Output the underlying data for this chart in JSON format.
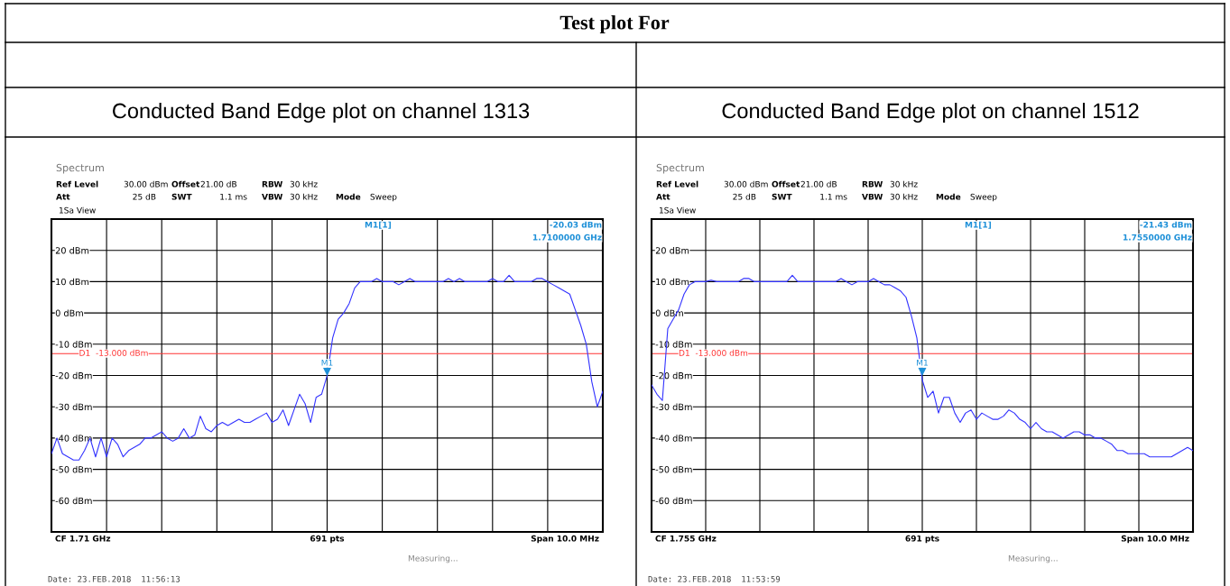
{
  "chart_data": [
    {
      "type": "line",
      "title": "Conducted Band Edge plot on channel 1313",
      "categories": [
        null,
        null,
        null,
        null,
        null,
        null,
        null,
        null,
        null,
        null,
        null,
        null,
        null,
        null,
        null,
        null,
        null,
        null,
        null,
        null,
        null,
        null,
        null,
        null,
        null,
        null,
        null,
        null,
        null,
        null,
        null,
        null,
        null,
        null,
        null,
        null,
        null,
        null,
        null,
        null,
        null,
        null,
        null,
        null,
        null,
        null,
        null,
        null,
        null,
        null,
        null,
        null,
        null,
        null,
        null,
        null,
        null,
        null,
        null,
        null,
        null,
        null,
        null,
        null,
        null,
        null,
        null,
        null,
        null,
        null,
        null,
        null,
        null,
        null,
        null,
        null,
        null,
        null,
        null,
        null,
        null,
        null,
        null,
        null,
        null,
        null,
        null,
        null,
        null,
        null,
        null,
        null,
        null,
        null,
        null,
        null,
        null,
        null,
        null,
        null,
        null
      ],
      "series": [
        {
          "color": "#3333ff",
          "values": [
            -45,
            -40,
            -45,
            -46,
            -47,
            -47,
            -44,
            -40,
            -46,
            -40,
            -46,
            -40,
            -42,
            -46,
            -44,
            -43,
            -42,
            -40,
            -40,
            -39,
            -38,
            -40,
            -41,
            -40,
            -37,
            -40,
            -39,
            -33,
            -37,
            -38,
            -36,
            -35,
            -36,
            -35,
            -34,
            -35,
            -35,
            -34,
            -33,
            -32,
            -35,
            -34,
            -31,
            -36,
            -31,
            -26,
            -29,
            -35,
            -27,
            -26,
            -20.03,
            -8,
            -2,
            0,
            3,
            8,
            10,
            10,
            10,
            11,
            10,
            10,
            10,
            9,
            10,
            11,
            10,
            10,
            10,
            10,
            10,
            10,
            11,
            10,
            11,
            10,
            10,
            10,
            10,
            10,
            11,
            10,
            10,
            12,
            10,
            10,
            10,
            10,
            11,
            11,
            10,
            9,
            8,
            7,
            6,
            1,
            -4,
            -10,
            -22,
            -30,
            -25
          ]
        }
      ],
      "ylim": [
        -70,
        30
      ],
      "yticks": [
        {
          "value": 20,
          "label": "20 dBm"
        },
        {
          "value": 10,
          "label": "10 dBm"
        },
        {
          "value": 0,
          "label": "0 dBm"
        },
        {
          "value": -10,
          "label": "-10 dBm"
        },
        {
          "value": -20,
          "label": "-20 dBm"
        },
        {
          "value": -30,
          "label": "-30 dBm"
        },
        {
          "value": -40,
          "label": "-40 dBm"
        },
        {
          "value": -50,
          "label": "-50 dBm"
        },
        {
          "value": -60,
          "label": "-60 dBm"
        }
      ],
      "tick_labels": "y",
      "grid": true,
      "line_style": "solid",
      "marker": "none",
      "ref_lines": [
        {
          "axis": "y",
          "value": -13,
          "label": "D1  -13.000 dBm",
          "color": "#ff3333"
        }
      ],
      "annotations": [
        "Spectrum",
        "Ref Level",
        "30.00 dBm",
        "Offset",
        "21.00 dB",
        "RBW",
        "30 kHz",
        "Att",
        "25 dB",
        "SWT",
        "1.1 ms",
        "VBW",
        "30 kHz",
        "Mode",
        "Sweep",
        "1Sa View",
        "M1[1]",
        "-20.03 dBm",
        "1.7100000 GHz",
        "CF 1.71 GHz",
        "691 pts",
        "Span 10.0 MHz",
        "Measuring...",
        "Date: 23.FEB.2018  11:56:13",
        "M1",
        "Test plot For"
      ]
    },
    {
      "type": "line",
      "title": "Conducted Band Edge plot on channel 1512",
      "categories": [
        null,
        null,
        null,
        null,
        null,
        null,
        null,
        null,
        null,
        null,
        null,
        null,
        null,
        null,
        null,
        null,
        null,
        null,
        null,
        null,
        null,
        null,
        null,
        null,
        null,
        null,
        null,
        null,
        null,
        null,
        null,
        null,
        null,
        null,
        null,
        null,
        null,
        null,
        null,
        null,
        null,
        null,
        null,
        null,
        null,
        null,
        null,
        null,
        null,
        null,
        null,
        null,
        null,
        null,
        null,
        null,
        null,
        null,
        null,
        null,
        null,
        null,
        null,
        null,
        null,
        null,
        null,
        null,
        null,
        null,
        null,
        null,
        null,
        null,
        null,
        null,
        null,
        null,
        null,
        null,
        null,
        null,
        null,
        null,
        null,
        null,
        null,
        null,
        null,
        null,
        null,
        null,
        null,
        null,
        null,
        null,
        null,
        null,
        null,
        null,
        null
      ],
      "series": [
        {
          "color": "#3333ff",
          "values": [
            -23,
            -26,
            -28,
            -5,
            -2,
            1,
            6,
            9,
            10,
            10,
            10,
            10.5,
            10,
            10,
            10,
            10,
            10,
            11,
            11,
            10,
            10,
            10,
            10,
            10,
            10,
            10,
            12,
            10,
            10,
            10,
            10,
            10,
            10,
            10,
            10,
            11,
            10,
            9,
            10,
            10,
            10,
            11,
            10,
            9,
            9,
            8,
            7,
            5,
            -1,
            -8,
            -21.43,
            -27,
            -25,
            -32,
            -27,
            -27,
            -32,
            -35,
            -32,
            -31,
            -34,
            -32,
            -33,
            -34,
            -34,
            -33,
            -31,
            -32,
            -34,
            -35,
            -37,
            -35,
            -37,
            -38,
            -38,
            -39,
            -40,
            -39,
            -38,
            -38,
            -39,
            -39,
            -40,
            -40,
            -41,
            -42,
            -44,
            -44,
            -45,
            -45,
            -45,
            -45,
            -46,
            -46,
            -46,
            -46,
            -46,
            -45,
            -44,
            -43,
            -44
          ]
        }
      ],
      "ylim": [
        -70,
        30
      ],
      "yticks": [
        {
          "value": 20,
          "label": "20 dBm"
        },
        {
          "value": 10,
          "label": "10 dBm"
        },
        {
          "value": 0,
          "label": "0 dBm"
        },
        {
          "value": -10,
          "label": "-10 dBm"
        },
        {
          "value": -20,
          "label": "-20 dBm"
        },
        {
          "value": -30,
          "label": "-30 dBm"
        },
        {
          "value": -40,
          "label": "-40 dBm"
        },
        {
          "value": -50,
          "label": "-50 dBm"
        },
        {
          "value": -60,
          "label": "-60 dBm"
        }
      ],
      "tick_labels": "y",
      "grid": true,
      "line_style": "solid",
      "marker": "none",
      "ref_lines": [
        {
          "axis": "y",
          "value": -13,
          "label": "D1  -13.000 dBm",
          "color": "#ff3333"
        }
      ],
      "annotations": [
        "Spectrum",
        "Ref Level",
        "30.00 dBm",
        "Offset",
        "21.00 dB",
        "RBW",
        "30 kHz",
        "Att",
        "25 dB",
        "SWT",
        "1.1 ms",
        "VBW",
        "30 kHz",
        "Mode",
        "Sweep",
        "1Sa View",
        "M1[1]",
        "-21.43 dBm",
        "1.7550000 GHz",
        "CF 1.755 GHz",
        "691 pts",
        "Span 10.0 MHz",
        "Measuring...",
        "Date: 23.FEB.2018  11:53:59",
        "M1"
      ]
    }
  ]
}
